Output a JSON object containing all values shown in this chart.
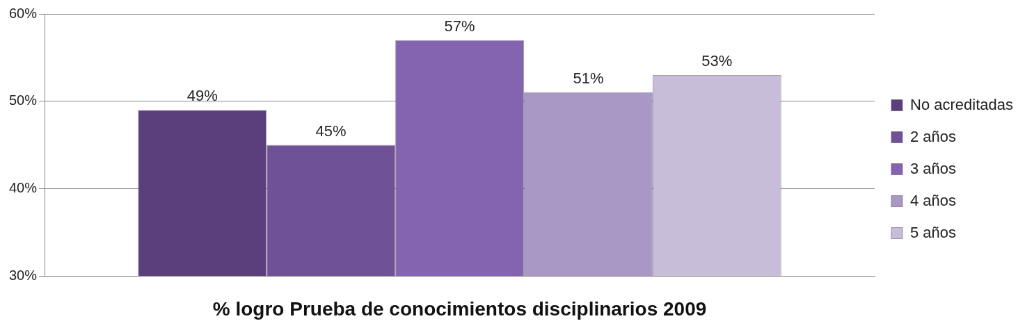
{
  "chart_data": {
    "type": "bar",
    "xlabel": "% logro Prueba de conocimientos disciplinarios 2009",
    "categories": [
      null
    ],
    "series": [
      {
        "name": "No acreditadas",
        "color": "#5b3f7c",
        "values": [
          49
        ],
        "value_labels": [
          "49%"
        ]
      },
      {
        "name": "2 años",
        "color": "#6f5197",
        "values": [
          45
        ],
        "value_labels": [
          "45%"
        ]
      },
      {
        "name": "3 años",
        "color": "#8464b0",
        "values": [
          57
        ],
        "value_labels": [
          "57%"
        ]
      },
      {
        "name": "4 años",
        "color": "#a997c5",
        "values": [
          51
        ],
        "value_labels": [
          "51%"
        ]
      },
      {
        "name": "5 años",
        "color": "#c8bdd8",
        "values": [
          53
        ],
        "value_labels": [
          "53%"
        ]
      }
    ],
    "ylim": [
      30,
      60
    ],
    "yticks": [
      {
        "value": 30,
        "label": "30%"
      },
      {
        "value": 40,
        "label": "40%"
      },
      {
        "value": 50,
        "label": "50%"
      },
      {
        "value": 60,
        "label": "60%"
      }
    ],
    "grid": "y",
    "legend": "right"
  }
}
